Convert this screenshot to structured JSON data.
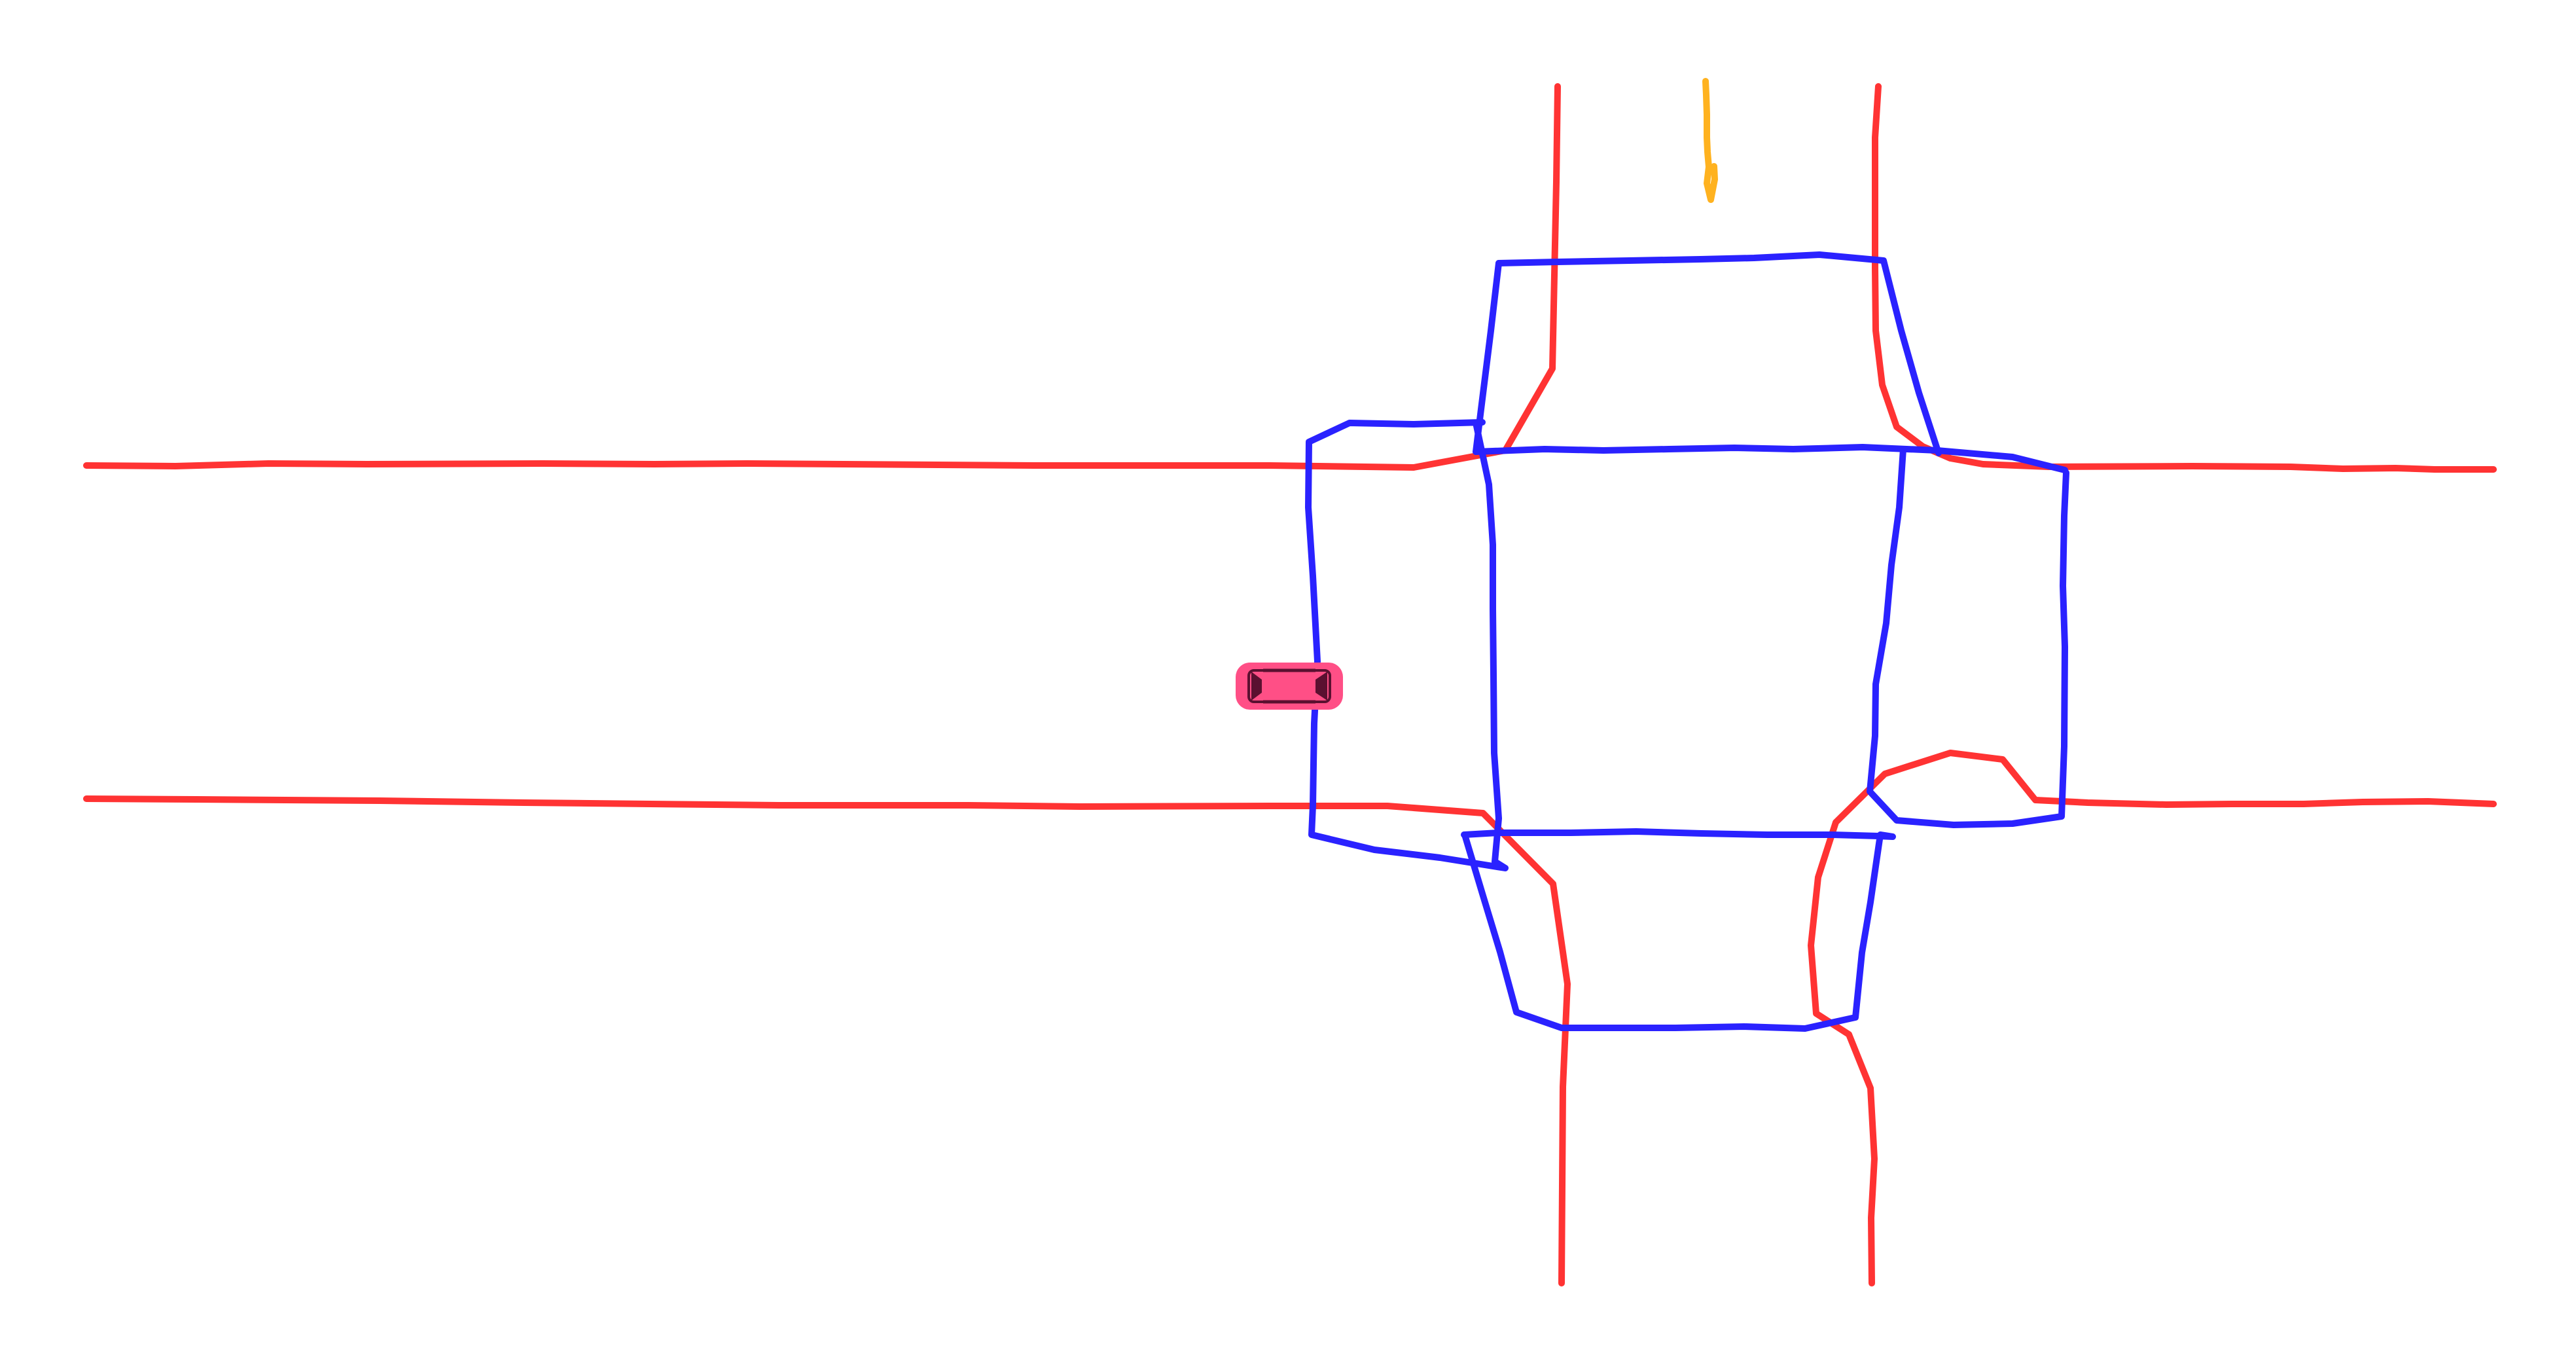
{
  "map": {
    "background": "#ffffff",
    "colors": {
      "road_boundary": "#ff3333",
      "lane_divider": "#2a22ff",
      "pedestrian_marker": "#ffb21f",
      "ego_vehicle": "#ff4f86",
      "ego_vehicle_detail": "#5b1030"
    },
    "layers": [
      {
        "name": "road-boundary",
        "color_key": "road_boundary",
        "count": 8
      },
      {
        "name": "lane-divider",
        "color_key": "lane_divider",
        "count": 4
      },
      {
        "name": "pedestrian-marker",
        "color_key": "pedestrian_marker",
        "count": 1
      }
    ],
    "ego_vehicle": {
      "icon": "car-icon",
      "heading": "east"
    }
  }
}
